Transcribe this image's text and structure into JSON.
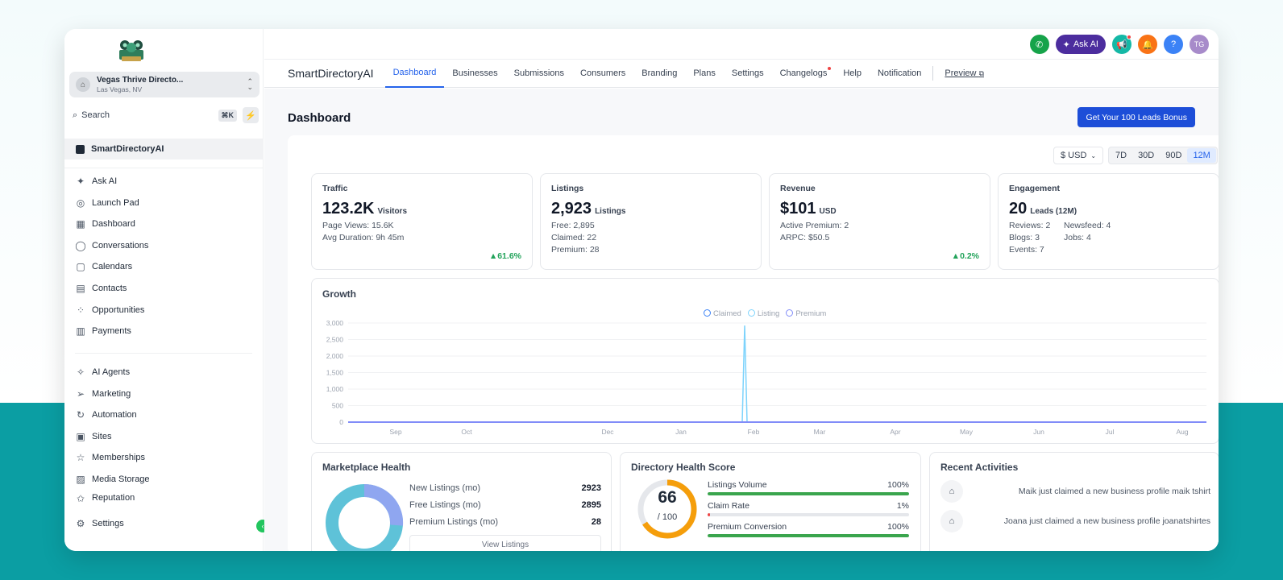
{
  "sidebar": {
    "location_name": "Vegas Thrive Directo...",
    "location_sub": "Las Vegas, NV",
    "search_label": "Search",
    "search_shortcut": "⌘K",
    "active_item": "SmartDirectoryAI",
    "group1": [
      {
        "label": "Ask AI",
        "icon": "sparkle-icon"
      },
      {
        "label": "Launch Pad",
        "icon": "rocket-icon"
      },
      {
        "label": "Dashboard",
        "icon": "grid-icon"
      },
      {
        "label": "Conversations",
        "icon": "chat-icon"
      },
      {
        "label": "Calendars",
        "icon": "calendar-icon"
      },
      {
        "label": "Contacts",
        "icon": "contacts-icon"
      },
      {
        "label": "Opportunities",
        "icon": "opportunities-icon"
      },
      {
        "label": "Payments",
        "icon": "payments-icon"
      }
    ],
    "group2": [
      {
        "label": "AI Agents",
        "icon": "ai-agents-icon"
      },
      {
        "label": "Marketing",
        "icon": "send-icon"
      },
      {
        "label": "Automation",
        "icon": "automation-icon"
      },
      {
        "label": "Sites",
        "icon": "sites-icon"
      },
      {
        "label": "Memberships",
        "icon": "badge-icon"
      },
      {
        "label": "Media Storage",
        "icon": "image-icon"
      },
      {
        "label": "Reputation",
        "icon": "star-icon"
      }
    ],
    "settings_label": "Settings"
  },
  "topbar": {
    "ask_ai_label": "Ask AI",
    "avatar_initials": "TG"
  },
  "nav": {
    "brand": "SmartDirectoryAI",
    "tabs": [
      "Dashboard",
      "Businesses",
      "Submissions",
      "Consumers",
      "Branding",
      "Plans",
      "Settings",
      "Changelogs",
      "Help",
      "Notification"
    ],
    "preview_label": "Preview"
  },
  "main": {
    "title": "Dashboard",
    "bonus_button": "Get Your 100 Leads Bonus",
    "currency": "$ USD",
    "periods": [
      "7D",
      "30D",
      "90D",
      "12M"
    ],
    "selected_period": "12M"
  },
  "cards": {
    "traffic": {
      "title": "Traffic",
      "value": "123.2K",
      "unit": "Visitors",
      "line1": "Page Views: 15.6K",
      "line2": "Avg Duration: 9h 45m",
      "trend": "▲61.6%"
    },
    "listings": {
      "title": "Listings",
      "value": "2,923",
      "unit": "Listings",
      "line1": "Free: 2,895",
      "line2": "Claimed: 22",
      "line3": "Premium: 28"
    },
    "revenue": {
      "title": "Revenue",
      "value": "$101",
      "unit": "USD",
      "line1": "Active Premium: 2",
      "line2": "ARPC: $50.5",
      "trend": "▲0.2%"
    },
    "engagement": {
      "title": "Engagement",
      "value": "20",
      "unit": "Leads (12M)",
      "items": [
        "Reviews: 2",
        "Newsfeed: 4",
        "Blogs: 3",
        "Jobs: 4",
        "Events: 7"
      ]
    }
  },
  "growth": {
    "title": "Growth"
  },
  "chart_data": {
    "type": "line",
    "title": "Growth",
    "x_ticks": [
      "Sep",
      "Oct",
      "Dec",
      "Jan",
      "Feb",
      "Mar",
      "Apr",
      "May",
      "Jun",
      "Jul",
      "Aug"
    ],
    "y_ticks": [
      "0",
      "500",
      "1,000",
      "1,500",
      "2,000",
      "2,500",
      "3,000"
    ],
    "ylim": [
      0,
      3000
    ],
    "legend": [
      "Claimed",
      "Listing",
      "Premium"
    ],
    "series": [
      {
        "name": "Claimed",
        "color": "#3b82f6",
        "spike": 0
      },
      {
        "name": "Listing",
        "color": "#7dd3fc",
        "spike": 2923
      },
      {
        "name": "Premium",
        "color": "#818cf8",
        "spike": 0
      }
    ],
    "spike_at": "Feb"
  },
  "marketplace": {
    "title": "Marketplace Health",
    "rows": [
      {
        "label": "New Listings (mo)",
        "value": "2923"
      },
      {
        "label": "Free Listings (mo)",
        "value": "2895"
      },
      {
        "label": "Premium Listings (mo)",
        "value": "28"
      }
    ],
    "button": "View Listings"
  },
  "health": {
    "title": "Directory Health Score",
    "score": "66",
    "score_den": "/ 100",
    "score_level": 0.66,
    "rows": [
      {
        "label": "Listings Volume",
        "pct": "100%",
        "level": 1.0
      },
      {
        "label": "Claim Rate",
        "pct": "1%",
        "level": 0.01
      },
      {
        "label": "Premium Conversion",
        "pct": "100%",
        "level": 1.0
      }
    ]
  },
  "activities": {
    "title": "Recent Activities",
    "items": [
      "Maik just claimed a new business profile maik tshirt",
      "Joana just claimed a new business profile joanatshirtes"
    ]
  }
}
